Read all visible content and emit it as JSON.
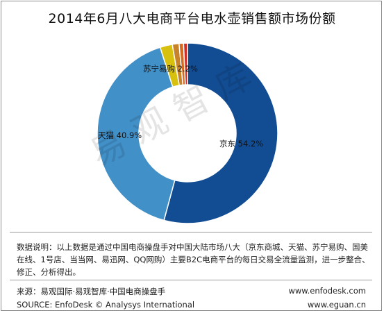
{
  "title": "2014年6月八大电商平台电水壶销售额市场份额",
  "watermark": "易观智库",
  "chart_data": {
    "type": "pie",
    "donut": true,
    "title": "2014年6月八大电商平台电水壶销售额市场份额",
    "slices": [
      {
        "name": "京东",
        "value": 54.2,
        "label": "京东 54.2%",
        "color": "#124d93"
      },
      {
        "name": "天猫",
        "value": 40.9,
        "label": "天猫 40.9%",
        "color": "#4290c8"
      },
      {
        "name": "苏宁易购",
        "value": 2.2,
        "label": "苏宁易购 2.2%",
        "color": "#d7c00e"
      },
      {
        "name": "",
        "value": 1.2,
        "label": "",
        "color": "#c8822a"
      },
      {
        "name": "",
        "value": 0.8,
        "label": "",
        "color": "#d86a1e"
      },
      {
        "name": "",
        "value": 0.7,
        "label": "",
        "color": "#cf2f27"
      }
    ]
  },
  "note": "数据说明：以上数据是通过中国电商操盘手对中国大陆市场八大（京东商城、天猫、苏宁易购、国美在线、1号店、当当网、易迅网、QQ网购）主要B2C电商平台的每日交易全流量监测，进一步整合、修正、分析得出。",
  "footer": {
    "source_cn": "来源：易观国际·易观智库·中国电商操盘手",
    "source_en": "SOURCE: EnfoDesk © Analysys International",
    "url1": "www.enfodesk.com",
    "url2": "www.eguan.cn"
  }
}
